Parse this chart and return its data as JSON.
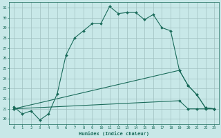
{
  "xlabel": "Humidex (Indice chaleur)",
  "bg_color": "#c8e8e8",
  "grid_color": "#a0c0c0",
  "line_color": "#1a6b5a",
  "x_upper": [
    0,
    1,
    2,
    3,
    4,
    5,
    6,
    7,
    8,
    9,
    10,
    11,
    12,
    13,
    14,
    15,
    16,
    17,
    18,
    19,
    20,
    21,
    22,
    23
  ],
  "y_upper": [
    21.2,
    20.5,
    20.8,
    19.9,
    20.5,
    22.5,
    26.3,
    28.0,
    28.7,
    29.4,
    29.4,
    31.1,
    30.4,
    30.5,
    30.5,
    29.8,
    30.3,
    29.0,
    28.7,
    24.8,
    23.3,
    22.4,
    21.1,
    21.0
  ],
  "x_mid": [
    0,
    19,
    20,
    21,
    22,
    23
  ],
  "y_mid": [
    21.0,
    24.8,
    23.3,
    22.4,
    21.1,
    21.0
  ],
  "x_low": [
    0,
    19,
    20,
    21,
    22,
    23
  ],
  "y_low": [
    21.0,
    21.8,
    21.0,
    21.0,
    21.0,
    21.0
  ],
  "ylim": [
    19.5,
    31.5
  ],
  "yticks": [
    20,
    21,
    22,
    23,
    24,
    25,
    26,
    27,
    28,
    29,
    30,
    31
  ],
  "xlim": [
    -0.5,
    23.5
  ],
  "xticks": [
    0,
    1,
    2,
    3,
    4,
    5,
    6,
    7,
    8,
    9,
    10,
    11,
    12,
    13,
    14,
    15,
    16,
    17,
    18,
    19,
    20,
    21,
    22,
    23
  ]
}
